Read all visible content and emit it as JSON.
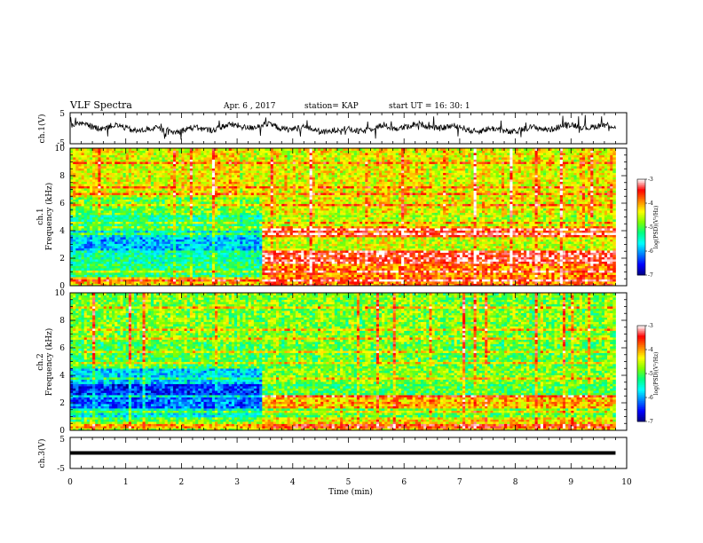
{
  "header": {
    "title": "VLF Spectra",
    "date": "Apr. 6 , 2017",
    "station": "station= KAP",
    "start": "start UT =   16: 30: 1"
  },
  "chart_data": [
    {
      "type": "line",
      "ylabel": "ch.1(V)",
      "ylim": [
        -5,
        5
      ],
      "ytick_labels": [
        "5",
        "-5"
      ],
      "xlim": [
        0,
        10
      ],
      "x_range_data": [
        0,
        9.8
      ],
      "series": [
        {
          "approx_mean": 0,
          "approx_amplitude": 1.5,
          "noise": "high"
        }
      ]
    },
    {
      "type": "heatmap",
      "ylabel": "ch.1\nFrequency (kHz)",
      "ylim": [
        0,
        10
      ],
      "ytick_labels": [
        "0",
        "2",
        "4",
        "6",
        "8",
        "10"
      ],
      "xlim": [
        0,
        10
      ],
      "x_range_data": [
        0,
        9.8
      ],
      "colorbar": {
        "label": "log(PSD)(V²/Hz)",
        "range": [
          -7,
          -3
        ],
        "tick_labels": [
          "-3",
          "-4",
          "-5",
          "-6",
          "-7"
        ]
      },
      "transition_min": 3.45,
      "bands_kHz": [
        {
          "from": 0,
          "to": 0.6,
          "before": -4.2,
          "after": -3.8
        },
        {
          "from": 0.6,
          "to": 1.6,
          "before": -5.2,
          "after": -3.9
        },
        {
          "from": 1.6,
          "to": 2.6,
          "before": -5.4,
          "after": -3.4
        },
        {
          "from": 2.6,
          "to": 3.5,
          "before": -5.9,
          "after": -4.5
        },
        {
          "from": 3.5,
          "to": 4.2,
          "before": -5.6,
          "after": -3.7
        },
        {
          "from": 4.2,
          "to": 5.2,
          "before": -5.3,
          "after": -4.6
        },
        {
          "from": 5.2,
          "to": 6.5,
          "before": -4.9,
          "after": -4.4
        },
        {
          "from": 6.5,
          "to": 10,
          "before": -4.4,
          "after": -4.4
        }
      ]
    },
    {
      "type": "heatmap",
      "ylabel": "ch.2\nFrequency (kHz)",
      "ylim": [
        0,
        10
      ],
      "ytick_labels": [
        "0",
        "2",
        "4",
        "6",
        "8",
        "10"
      ],
      "xlim": [
        0,
        10
      ],
      "x_range_data": [
        0,
        9.8
      ],
      "colorbar": {
        "label": "log(PSD)(V²/Hz)",
        "range": [
          -7,
          -3
        ],
        "tick_labels": [
          "-3",
          "-4",
          "-5",
          "-6",
          "-7"
        ]
      },
      "transition_min": 3.45,
      "bands_kHz": [
        {
          "from": 0,
          "to": 0.6,
          "before": -4.6,
          "after": -4.2
        },
        {
          "from": 0.6,
          "to": 1.6,
          "before": -5.6,
          "after": -4.9
        },
        {
          "from": 1.6,
          "to": 2.6,
          "before": -6.2,
          "after": -4.1
        },
        {
          "from": 2.6,
          "to": 3.4,
          "before": -6.4,
          "after": -5.0
        },
        {
          "from": 3.4,
          "to": 4.5,
          "before": -5.8,
          "after": -4.8
        },
        {
          "from": 4.5,
          "to": 6.5,
          "before": -5.0,
          "after": -4.9
        },
        {
          "from": 6.5,
          "to": 10,
          "before": -4.8,
          "after": -4.8
        }
      ]
    },
    {
      "type": "line",
      "ylabel": "ch.3(V)",
      "ylim": [
        -5,
        5
      ],
      "ytick_labels": [
        "5",
        "-5"
      ],
      "xlim": [
        0,
        10
      ],
      "x_range_data": [
        0,
        9.8
      ],
      "series": [
        {
          "constant_value": 0
        }
      ]
    }
  ],
  "xaxis": {
    "label": "Time (min)",
    "tick_labels": [
      "0",
      "1",
      "2",
      "3",
      "4",
      "5",
      "6",
      "7",
      "8",
      "9",
      "10"
    ]
  },
  "colors": {
    "colormap": [
      "#00007f",
      "#0000ff",
      "#0080ff",
      "#00ffff",
      "#00ff80",
      "#80ff00",
      "#ffff00",
      "#ff8000",
      "#ff0000",
      "#ffffff"
    ]
  }
}
